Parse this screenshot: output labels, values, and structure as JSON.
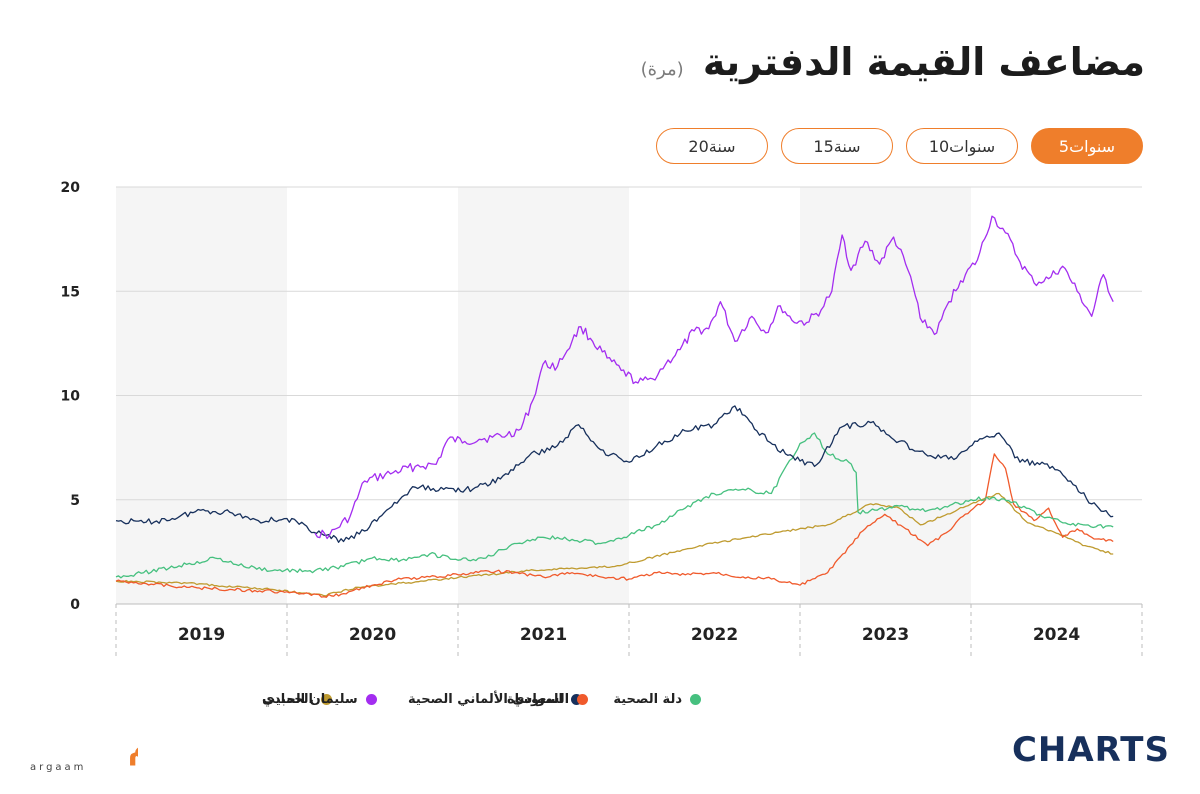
{
  "header": {
    "title": "مضاعف القيمة الدفترية",
    "unit": "(مرة)"
  },
  "range_tabs": [
    {
      "label": "5سنوات",
      "active": true
    },
    {
      "label": "10سنوات",
      "active": false
    },
    {
      "label": "15سنة",
      "active": false
    },
    {
      "label": "20سنة",
      "active": false
    }
  ],
  "brand": {
    "left_logo_text": "أرقام",
    "left_logo_sub": "argaam",
    "right_logo_text": "CHARTS"
  },
  "colors": {
    "accent": "#ef7e2b",
    "navy": "#17305c"
  },
  "chart_data": {
    "type": "line",
    "x_axis_type": "date",
    "x_range": [
      "2019-01-01",
      "2024-10-31"
    ],
    "ylim": [
      0,
      20
    ],
    "yticks": [
      0,
      5,
      10,
      15,
      20
    ],
    "xtick_labels": [
      "2019",
      "2020",
      "2021",
      "2022",
      "2023",
      "2024"
    ],
    "year_bands": "alternating shaded",
    "grid": "horizontal",
    "legend_position": "bottom",
    "series": [
      {
        "name": "سليمان الحبيب",
        "color": "#a32df0",
        "points": [
          [
            "2020-03-01",
            3.4
          ],
          [
            "2020-04-01",
            3.3
          ],
          [
            "2020-05-15",
            4.2
          ],
          [
            "2020-06-15",
            5.9
          ],
          [
            "2020-08-15",
            6.3
          ],
          [
            "2020-10-01",
            6.6
          ],
          [
            "2020-11-15",
            6.7
          ],
          [
            "2020-12-10",
            7.9
          ],
          [
            "2021-01-15",
            7.8
          ],
          [
            "2021-02-15",
            7.9
          ],
          [
            "2021-03-15",
            8.0
          ],
          [
            "2021-04-15",
            8.1
          ],
          [
            "2021-05-15",
            8.4
          ],
          [
            "2021-06-10",
            9.8
          ],
          [
            "2021-07-01",
            11.5
          ],
          [
            "2021-08-01",
            11.4
          ],
          [
            "2021-09-01",
            12.6
          ],
          [
            "2021-09-20",
            13.3
          ],
          [
            "2021-10-15",
            12.6
          ],
          [
            "2021-11-15",
            11.8
          ],
          [
            "2021-12-15",
            11.2
          ],
          [
            "2022-01-20",
            10.6
          ],
          [
            "2022-02-20",
            10.8
          ],
          [
            "2022-03-20",
            11.5
          ],
          [
            "2022-04-20",
            12.2
          ],
          [
            "2022-05-20",
            13.1
          ],
          [
            "2022-06-20",
            13.2
          ],
          [
            "2022-07-15",
            14.5
          ],
          [
            "2022-08-15",
            12.6
          ],
          [
            "2022-09-20",
            13.8
          ],
          [
            "2022-10-20",
            13.0
          ],
          [
            "2022-11-20",
            14.3
          ],
          [
            "2022-12-15",
            13.6
          ],
          [
            "2023-01-15",
            13.5
          ],
          [
            "2023-02-15",
            14.1
          ],
          [
            "2023-03-10",
            15.0
          ],
          [
            "2023-04-01",
            17.7
          ],
          [
            "2023-04-20",
            16.0
          ],
          [
            "2023-05-20",
            17.4
          ],
          [
            "2023-06-20",
            16.3
          ],
          [
            "2023-07-20",
            17.6
          ],
          [
            "2023-08-20",
            16.0
          ],
          [
            "2023-09-20",
            13.5
          ],
          [
            "2023-10-20",
            13.0
          ],
          [
            "2023-11-15",
            14.5
          ],
          [
            "2023-12-10",
            15.5
          ],
          [
            "2024-01-15",
            16.5
          ],
          [
            "2024-02-15",
            18.6
          ],
          [
            "2024-03-15",
            17.8
          ],
          [
            "2024-04-15",
            16.4
          ],
          [
            "2024-05-15",
            15.4
          ],
          [
            "2024-06-15",
            15.6
          ],
          [
            "2024-07-15",
            16.2
          ],
          [
            "2024-08-15",
            15.0
          ],
          [
            "2024-09-15",
            13.8
          ],
          [
            "2024-10-10",
            15.8
          ],
          [
            "2024-10-31",
            14.5
          ]
        ]
      },
      {
        "name": "السعودي الألماني الصحية",
        "color": "#f05a2c",
        "points": [
          [
            "2019-01-01",
            1.1
          ],
          [
            "2019-03-01",
            1.0
          ],
          [
            "2019-06-01",
            0.8
          ],
          [
            "2019-09-01",
            0.7
          ],
          [
            "2019-12-01",
            0.6
          ],
          [
            "2020-02-01",
            0.5
          ],
          [
            "2020-03-20",
            0.35
          ],
          [
            "2020-05-01",
            0.5
          ],
          [
            "2020-07-01",
            0.9
          ],
          [
            "2020-09-01",
            1.2
          ],
          [
            "2020-11-01",
            1.3
          ],
          [
            "2021-01-01",
            1.4
          ],
          [
            "2021-03-01",
            1.6
          ],
          [
            "2021-05-01",
            1.5
          ],
          [
            "2021-07-01",
            1.3
          ],
          [
            "2021-09-01",
            1.5
          ],
          [
            "2021-11-01",
            1.3
          ],
          [
            "2022-01-01",
            1.2
          ],
          [
            "2022-03-01",
            1.5
          ],
          [
            "2022-05-01",
            1.4
          ],
          [
            "2022-07-01",
            1.5
          ],
          [
            "2022-09-01",
            1.3
          ],
          [
            "2022-11-01",
            1.2
          ],
          [
            "2023-01-01",
            0.9
          ],
          [
            "2023-03-01",
            1.5
          ],
          [
            "2023-05-15",
            3.5
          ],
          [
            "2023-07-01",
            4.3
          ],
          [
            "2023-08-15",
            3.6
          ],
          [
            "2023-10-01",
            2.8
          ],
          [
            "2023-11-15",
            3.5
          ],
          [
            "2023-12-15",
            4.2
          ],
          [
            "2024-02-01",
            5.0
          ],
          [
            "2024-02-20",
            7.2
          ],
          [
            "2024-03-15",
            6.5
          ],
          [
            "2024-04-01",
            4.8
          ],
          [
            "2024-05-15",
            4.0
          ],
          [
            "2024-06-15",
            4.6
          ],
          [
            "2024-07-15",
            3.2
          ],
          [
            "2024-08-15",
            3.6
          ],
          [
            "2024-09-15",
            3.2
          ],
          [
            "2024-10-31",
            3.0
          ]
        ]
      },
      {
        "name": "دلة الصحية",
        "color": "#46c07f",
        "points": [
          [
            "2019-01-01",
            1.3
          ],
          [
            "2019-03-01",
            1.5
          ],
          [
            "2019-06-01",
            1.9
          ],
          [
            "2019-08-01",
            2.2
          ],
          [
            "2019-10-01",
            1.8
          ],
          [
            "2019-12-01",
            1.6
          ],
          [
            "2020-03-01",
            1.6
          ],
          [
            "2020-05-01",
            1.8
          ],
          [
            "2020-07-01",
            2.2
          ],
          [
            "2020-09-01",
            2.1
          ],
          [
            "2020-11-01",
            2.4
          ],
          [
            "2021-01-01",
            2.1
          ],
          [
            "2021-03-01",
            2.2
          ],
          [
            "2021-05-01",
            2.9
          ],
          [
            "2021-07-01",
            3.2
          ],
          [
            "2021-09-01",
            3.1
          ],
          [
            "2021-11-01",
            2.9
          ],
          [
            "2022-01-01",
            3.3
          ],
          [
            "2022-03-01",
            3.8
          ],
          [
            "2022-05-01",
            4.6
          ],
          [
            "2022-07-01",
            5.3
          ],
          [
            "2022-09-01",
            5.5
          ],
          [
            "2022-11-01",
            5.3
          ],
          [
            "2023-01-01",
            7.7
          ],
          [
            "2023-02-01",
            8.2
          ],
          [
            "2023-03-01",
            7.2
          ],
          [
            "2023-04-15",
            6.8
          ],
          [
            "2023-05-01",
            6.3
          ],
          [
            "2023-05-05",
            4.4
          ],
          [
            "2023-06-15",
            4.5
          ],
          [
            "2023-08-01",
            4.7
          ],
          [
            "2023-09-15",
            4.5
          ],
          [
            "2023-11-01",
            4.6
          ],
          [
            "2024-01-01",
            5.0
          ],
          [
            "2024-02-15",
            5.1
          ],
          [
            "2024-04-01",
            4.9
          ],
          [
            "2024-06-01",
            4.2
          ],
          [
            "2024-08-01",
            3.8
          ],
          [
            "2024-10-31",
            3.7
          ]
        ]
      },
      {
        "name": "المواساة",
        "color": "#17305c",
        "points": [
          [
            "2019-01-01",
            4.0
          ],
          [
            "2019-03-01",
            3.9
          ],
          [
            "2019-05-01",
            4.1
          ],
          [
            "2019-07-01",
            4.5
          ],
          [
            "2019-09-01",
            4.4
          ],
          [
            "2019-11-01",
            4.0
          ],
          [
            "2020-01-01",
            4.1
          ],
          [
            "2020-03-20",
            3.3
          ],
          [
            "2020-05-01",
            3.0
          ],
          [
            "2020-06-15",
            3.5
          ],
          [
            "2020-08-01",
            4.5
          ],
          [
            "2020-10-01",
            5.6
          ],
          [
            "2020-12-01",
            5.5
          ],
          [
            "2021-02-01",
            5.5
          ],
          [
            "2021-04-01",
            6.0
          ],
          [
            "2021-06-01",
            7.1
          ],
          [
            "2021-08-01",
            7.6
          ],
          [
            "2021-09-15",
            8.6
          ],
          [
            "2021-11-01",
            7.4
          ],
          [
            "2022-01-01",
            6.8
          ],
          [
            "2022-03-01",
            7.6
          ],
          [
            "2022-05-01",
            8.3
          ],
          [
            "2022-07-01",
            8.6
          ],
          [
            "2022-08-15",
            9.5
          ],
          [
            "2022-10-01",
            8.3
          ],
          [
            "2022-12-01",
            7.2
          ],
          [
            "2023-02-01",
            6.6
          ],
          [
            "2023-04-01",
            8.5
          ],
          [
            "2023-06-01",
            8.7
          ],
          [
            "2023-08-01",
            7.8
          ],
          [
            "2023-10-01",
            7.1
          ],
          [
            "2023-12-01",
            7.0
          ],
          [
            "2024-01-15",
            7.8
          ],
          [
            "2024-03-01",
            8.2
          ],
          [
            "2024-04-15",
            6.8
          ],
          [
            "2024-06-01",
            6.8
          ],
          [
            "2024-08-01",
            5.9
          ],
          [
            "2024-09-15",
            4.8
          ],
          [
            "2024-10-31",
            4.2
          ]
        ]
      },
      {
        "name": "الحمادي",
        "color": "#bf9b30",
        "points": [
          [
            "2019-01-01",
            1.1
          ],
          [
            "2019-06-01",
            1.0
          ],
          [
            "2019-12-01",
            0.7
          ],
          [
            "2020-03-20",
            0.4
          ],
          [
            "2020-06-01",
            0.8
          ],
          [
            "2020-12-01",
            1.2
          ],
          [
            "2021-06-01",
            1.6
          ],
          [
            "2021-12-01",
            1.8
          ],
          [
            "2022-06-01",
            2.8
          ],
          [
            "2022-12-01",
            3.5
          ],
          [
            "2023-03-01",
            3.8
          ],
          [
            "2023-06-01",
            4.8
          ],
          [
            "2023-08-01",
            4.6
          ],
          [
            "2023-09-15",
            3.8
          ],
          [
            "2023-11-01",
            4.2
          ],
          [
            "2024-01-01",
            4.8
          ],
          [
            "2024-03-01",
            5.3
          ],
          [
            "2024-05-01",
            3.9
          ],
          [
            "2024-07-01",
            3.4
          ],
          [
            "2024-09-01",
            2.8
          ],
          [
            "2024-10-31",
            2.4
          ]
        ]
      }
    ]
  }
}
